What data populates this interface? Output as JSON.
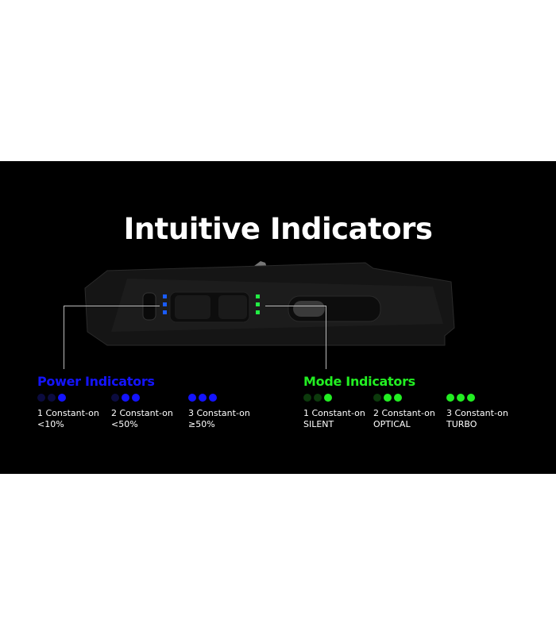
{
  "title": "Intuitive Indicators",
  "colors": {
    "power": "#1414ff",
    "power_dim": "#0b0b40",
    "mode": "#22ee22",
    "mode_dim": "#0c3a0c",
    "background": "#000000"
  },
  "power": {
    "title": "Power Indicators",
    "items": [
      {
        "line1": "1 Constant-on",
        "line2": "<10%",
        "lit": 1
      },
      {
        "line1": "2 Constant-on",
        "line2": "<50%",
        "lit": 2
      },
      {
        "line1": "3 Constant-on",
        "line2": "≥50%",
        "lit": 3
      }
    ]
  },
  "mode": {
    "title": "Mode Indicators",
    "items": [
      {
        "line1": "1 Constant-on",
        "line2": "SILENT",
        "lit": 1
      },
      {
        "line1": "2 Constant-on",
        "line2": "OPTICAL",
        "lit": 2
      },
      {
        "line1": "3 Constant-on",
        "line2": "TURBO",
        "lit": 3
      }
    ]
  }
}
